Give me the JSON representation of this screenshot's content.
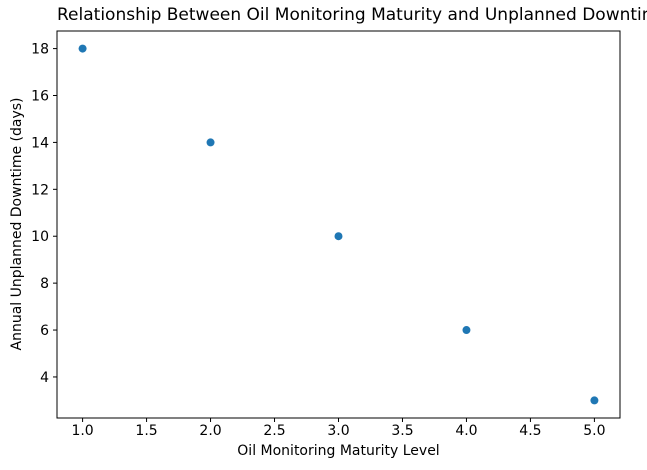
{
  "chart_data": {
    "type": "scatter",
    "title": "Relationship Between Oil Monitoring Maturity and Unplanned Downtime",
    "xlabel": "Oil Monitoring Maturity Level",
    "ylabel": "Annual Unplanned Downtime (days)",
    "x": [
      1,
      2,
      3,
      4,
      5
    ],
    "y": [
      18,
      14,
      10,
      6,
      3
    ],
    "xlim": [
      0.8,
      5.2
    ],
    "ylim": [
      2.25,
      18.75
    ],
    "xtick_labels": [
      "1.0",
      "1.5",
      "2.0",
      "2.5",
      "3.0",
      "3.5",
      "4.0",
      "4.5",
      "5.0"
    ],
    "xtick_values": [
      1.0,
      1.5,
      2.0,
      2.5,
      3.0,
      3.5,
      4.0,
      4.5,
      5.0
    ],
    "ytick_labels": [
      "4",
      "6",
      "8",
      "10",
      "12",
      "14",
      "16",
      "18"
    ],
    "ytick_values": [
      4,
      6,
      8,
      10,
      12,
      14,
      16,
      18
    ],
    "marker_color": "#1f77b4",
    "axis_color": "#000000",
    "background_color": "#ffffff",
    "grid": false,
    "legend": null
  }
}
